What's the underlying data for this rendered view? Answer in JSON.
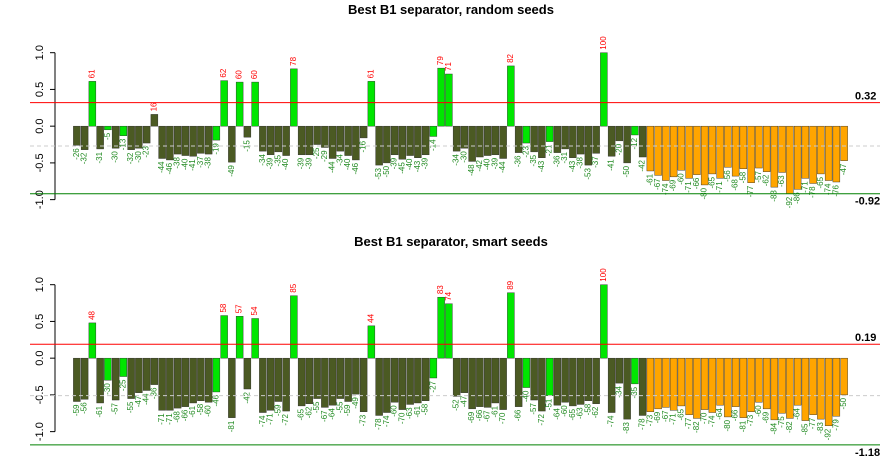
{
  "chart_data": [
    {
      "type": "bar",
      "title": "Best B1 separator, random seeds",
      "values": [
        -0.26,
        -0.32,
        0.61,
        -0.31,
        -0.05,
        -0.3,
        -0.13,
        -0.32,
        -0.3,
        -0.23,
        0.16,
        -0.44,
        -0.46,
        -0.38,
        -0.4,
        -0.41,
        -0.37,
        -0.38,
        -0.19,
        0.62,
        -0.49,
        0.6,
        -0.15,
        0.6,
        -0.34,
        -0.39,
        -0.35,
        -0.4,
        0.78,
        -0.39,
        -0.39,
        -0.25,
        -0.29,
        -0.44,
        -0.34,
        -0.4,
        -0.46,
        -0.16,
        0.61,
        -0.53,
        -0.5,
        -0.39,
        -0.45,
        -0.4,
        -0.43,
        -0.39,
        -0.14,
        0.79,
        0.71,
        -0.34,
        -0.3,
        -0.48,
        -0.42,
        -0.4,
        -0.39,
        -0.44,
        0.82,
        -0.36,
        -0.23,
        -0.35,
        -0.43,
        -0.21,
        -0.36,
        -0.31,
        -0.43,
        -0.38,
        -0.53,
        -0.37,
        1.0,
        -0.41,
        -0.2,
        -0.5,
        -0.12,
        -0.42,
        -0.61,
        -0.67,
        -0.74,
        -0.69,
        -0.6,
        -0.71,
        -0.66,
        -0.8,
        -0.65,
        -0.71,
        -0.56,
        -0.68,
        -0.58,
        -0.77,
        -0.57,
        -0.62,
        -0.83,
        -0.63,
        -0.92,
        -0.86,
        -0.71,
        -0.78,
        -0.65,
        -0.74,
        -0.76,
        -0.47
      ],
      "value_labels": [
        "-26",
        "-32",
        "61",
        "-31",
        "-5",
        "-30",
        "-13",
        "-32",
        "-30",
        "-23",
        "16",
        "-44",
        "-46",
        "-38",
        "-40",
        "-41",
        "-37",
        "-38",
        "-19",
        "62",
        "-49",
        "60",
        "-15",
        "60",
        "-34",
        "-39",
        "-35",
        "-40",
        "78",
        "-39",
        "-39",
        "-25",
        "-29",
        "-44",
        "-34",
        "-40",
        "-46",
        "-16",
        "61",
        "-53",
        "-50",
        "-39",
        "-45",
        "-40",
        "-43",
        "-39",
        "-14",
        "79",
        "71",
        "-34",
        "-30",
        "-48",
        "-42",
        "-40",
        "-39",
        "-44",
        "82",
        "-36",
        "-23",
        "-35",
        "-43",
        "-21",
        "-36",
        "-31",
        "-43",
        "-38",
        "-53",
        "-37",
        "100",
        "-41",
        "-20",
        "-50",
        "-12",
        "-42",
        "-61",
        "-67",
        "-74",
        "-69",
        "-60",
        "-71",
        "-66",
        "-80",
        "-65",
        "-71",
        "-56",
        "-68",
        "-58",
        "-77",
        "-57",
        "-62",
        "-83",
        "-63",
        "-92",
        "-86",
        "-71",
        "-78",
        "-65",
        "-74",
        "-76",
        "-47"
      ],
      "bar_colors": [
        "#4b5a23",
        "#4b5a23",
        "#00e600",
        "#4b5a23",
        "#00e600",
        "#4b5a23",
        "#00e600",
        "#4b5a23",
        "#4b5a23",
        "#4b5a23",
        "#4b5a23",
        "#4b5a23",
        "#4b5a23",
        "#4b5a23",
        "#4b5a23",
        "#4b5a23",
        "#4b5a23",
        "#4b5a23",
        "#00e600",
        "#00e600",
        "#4b5a23",
        "#00e600",
        "#4b5a23",
        "#00e600",
        "#4b5a23",
        "#4b5a23",
        "#4b5a23",
        "#4b5a23",
        "#00e600",
        "#4b5a23",
        "#4b5a23",
        "#4b5a23",
        "#4b5a23",
        "#4b5a23",
        "#4b5a23",
        "#4b5a23",
        "#4b5a23",
        "#4b5a23",
        "#00e600",
        "#4b5a23",
        "#4b5a23",
        "#4b5a23",
        "#4b5a23",
        "#4b5a23",
        "#4b5a23",
        "#4b5a23",
        "#00e600",
        "#00e600",
        "#00e600",
        "#4b5a23",
        "#4b5a23",
        "#4b5a23",
        "#4b5a23",
        "#4b5a23",
        "#4b5a23",
        "#4b5a23",
        "#00e600",
        "#4b5a23",
        "#00e600",
        "#4b5a23",
        "#4b5a23",
        "#00e600",
        "#4b5a23",
        "#4b5a23",
        "#4b5a23",
        "#4b5a23",
        "#4b5a23",
        "#4b5a23",
        "#00e600",
        "#4b5a23",
        "#4b5a23",
        "#4b5a23",
        "#00e600",
        "#4b5a23",
        "#ffa500",
        "#ffa500",
        "#ffa500",
        "#ffa500",
        "#ffa500",
        "#ffa500",
        "#ffa500",
        "#ffa500",
        "#ffa500",
        "#ffa500",
        "#ffa500",
        "#ffa500",
        "#ffa500",
        "#ffa500",
        "#ffa500",
        "#ffa500",
        "#ffa500",
        "#ffa500",
        "#ffa500",
        "#ffa500",
        "#ffa500",
        "#ffa500",
        "#ffa500",
        "#ffa500",
        "#ffa500",
        "#ffa500"
      ],
      "ylim": [
        -1.25,
        1.2
      ],
      "yticks": [
        {
          "value": -1,
          "label": "-1.0"
        },
        {
          "value": -0.5,
          "label": "-0.5"
        },
        {
          "value": 0,
          "label": "0.0"
        },
        {
          "value": 0.5,
          "label": "0.5"
        },
        {
          "value": 1,
          "label": "1.0"
        }
      ],
      "hlines": [
        {
          "value": 0.32,
          "color": "#ff0000"
        },
        {
          "value": -0.92,
          "color": "#008000"
        },
        {
          "value": -0.27,
          "color": "#cccccc",
          "dash": true
        }
      ]
    },
    {
      "type": "bar",
      "title": "Best B1 separator, smart seeds",
      "values": [
        -0.59,
        -0.56,
        0.48,
        -0.61,
        -0.3,
        -0.57,
        -0.25,
        -0.55,
        -0.47,
        -0.44,
        -0.36,
        -0.71,
        -0.71,
        -0.68,
        -0.66,
        -0.61,
        -0.58,
        -0.6,
        -0.46,
        0.58,
        -0.81,
        0.57,
        -0.42,
        0.54,
        -0.74,
        -0.71,
        -0.59,
        -0.72,
        0.85,
        -0.65,
        -0.62,
        -0.55,
        -0.67,
        -0.64,
        -0.55,
        -0.59,
        -0.49,
        -0.73,
        0.44,
        -0.78,
        -0.74,
        -0.6,
        -0.7,
        -0.63,
        -0.61,
        -0.58,
        -0.27,
        0.83,
        0.74,
        -0.52,
        -0.47,
        -0.69,
        -0.66,
        -0.67,
        -0.61,
        -0.7,
        0.89,
        -0.66,
        -0.4,
        -0.57,
        -0.72,
        -0.51,
        -0.64,
        -0.6,
        -0.65,
        -0.63,
        -0.58,
        -0.62,
        1.0,
        -0.74,
        -0.34,
        -0.83,
        -0.35,
        -0.78,
        -0.73,
        -0.69,
        -0.67,
        -0.71,
        -0.65,
        -0.77,
        -0.82,
        -0.7,
        -0.74,
        -0.64,
        -0.8,
        -0.66,
        -0.81,
        -0.73,
        -0.6,
        -0.69,
        -0.84,
        -0.75,
        -0.82,
        -0.64,
        -0.85,
        -0.77,
        -0.83,
        -0.92,
        -0.79,
        -0.5
      ],
      "value_labels": [
        "-59",
        "-56",
        "48",
        "-61",
        "-30",
        "-57",
        "-25",
        "-55",
        "-47",
        "-44",
        "-36",
        "-71",
        "-71",
        "-68",
        "-66",
        "-61",
        "-58",
        "-60",
        "-46",
        "58",
        "-81",
        "57",
        "-42",
        "54",
        "-74",
        "-71",
        "-59",
        "-72",
        "85",
        "-65",
        "-62",
        "-55",
        "-67",
        "-64",
        "-55",
        "-59",
        "-49",
        "-73",
        "44",
        "-78",
        "-74",
        "-60",
        "-70",
        "-63",
        "-61",
        "-58",
        "-27",
        "83",
        "74",
        "-52",
        "-47",
        "-69",
        "-66",
        "-67",
        "-61",
        "-70",
        "89",
        "-66",
        "-40",
        "-57",
        "-72",
        "-51",
        "-64",
        "-60",
        "-65",
        "-63",
        "-58",
        "-62",
        "100",
        "-74",
        "-34",
        "-83",
        "-35",
        "-78",
        "-73",
        "-69",
        "-67",
        "-71",
        "-65",
        "-77",
        "-82",
        "-70",
        "-74",
        "-64",
        "-80",
        "-66",
        "-81",
        "-73",
        "-60",
        "-69",
        "-84",
        "-75",
        "-82",
        "-64",
        "-85",
        "-77",
        "-83",
        "-92",
        "-79",
        "-50"
      ],
      "bar_colors": [
        "#4b5a23",
        "#4b5a23",
        "#00e600",
        "#4b5a23",
        "#00e600",
        "#4b5a23",
        "#00e600",
        "#4b5a23",
        "#4b5a23",
        "#4b5a23",
        "#4b5a23",
        "#4b5a23",
        "#4b5a23",
        "#4b5a23",
        "#4b5a23",
        "#4b5a23",
        "#4b5a23",
        "#4b5a23",
        "#00e600",
        "#00e600",
        "#4b5a23",
        "#00e600",
        "#4b5a23",
        "#00e600",
        "#4b5a23",
        "#4b5a23",
        "#4b5a23",
        "#4b5a23",
        "#00e600",
        "#4b5a23",
        "#4b5a23",
        "#4b5a23",
        "#4b5a23",
        "#4b5a23",
        "#4b5a23",
        "#4b5a23",
        "#4b5a23",
        "#4b5a23",
        "#00e600",
        "#4b5a23",
        "#4b5a23",
        "#4b5a23",
        "#4b5a23",
        "#4b5a23",
        "#4b5a23",
        "#4b5a23",
        "#00e600",
        "#00e600",
        "#00e600",
        "#4b5a23",
        "#4b5a23",
        "#4b5a23",
        "#4b5a23",
        "#4b5a23",
        "#4b5a23",
        "#4b5a23",
        "#00e600",
        "#4b5a23",
        "#00e600",
        "#4b5a23",
        "#4b5a23",
        "#00e600",
        "#4b5a23",
        "#4b5a23",
        "#4b5a23",
        "#4b5a23",
        "#4b5a23",
        "#4b5a23",
        "#00e600",
        "#4b5a23",
        "#4b5a23",
        "#4b5a23",
        "#00e600",
        "#4b5a23",
        "#ffa500",
        "#ffa500",
        "#ffa500",
        "#ffa500",
        "#ffa500",
        "#ffa500",
        "#ffa500",
        "#ffa500",
        "#ffa500",
        "#ffa500",
        "#ffa500",
        "#ffa500",
        "#ffa500",
        "#ffa500",
        "#ffa500",
        "#ffa500",
        "#ffa500",
        "#ffa500",
        "#ffa500",
        "#ffa500",
        "#ffa500",
        "#ffa500",
        "#ffa500",
        "#ffa500",
        "#ffa500",
        "#ffa500"
      ],
      "ylim": [
        -1.25,
        1.2
      ],
      "yticks": [
        {
          "value": -1,
          "label": "-1.0"
        },
        {
          "value": -0.5,
          "label": "-0.5"
        },
        {
          "value": 0,
          "label": "0.0"
        },
        {
          "value": 0.5,
          "label": "0.5"
        },
        {
          "value": 1,
          "label": "1.0"
        }
      ],
      "hlines": [
        {
          "value": 0.19,
          "color": "#ff0000"
        },
        {
          "value": -1.18,
          "color": "#008000"
        },
        {
          "value": -0.51,
          "color": "#cccccc",
          "dash": true
        }
      ]
    }
  ]
}
